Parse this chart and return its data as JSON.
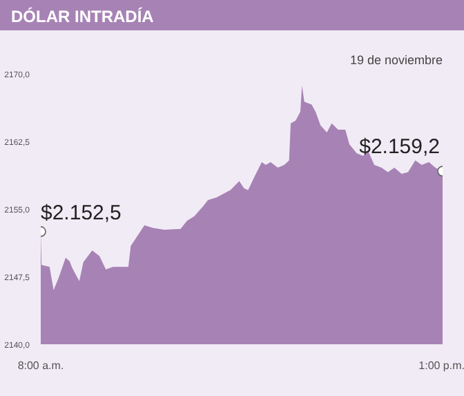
{
  "chart_data": {
    "type": "area",
    "title": "DÓLAR INTRADÍA",
    "subtitle": "19 de noviembre",
    "x": [
      8.0,
      8.01,
      8.11,
      8.16,
      8.22,
      8.31,
      8.36,
      8.39,
      8.48,
      8.53,
      8.64,
      8.73,
      8.81,
      8.9,
      9.09,
      9.12,
      9.18,
      9.29,
      9.4,
      9.54,
      9.74,
      9.82,
      9.91,
      10.02,
      10.08,
      10.19,
      10.36,
      10.47,
      10.53,
      10.58,
      10.66,
      10.75,
      10.8,
      10.86,
      10.95,
      11.03,
      11.09,
      11.11,
      11.17,
      11.23,
      11.25,
      11.28,
      11.37,
      11.42,
      11.48,
      11.56,
      11.62,
      11.7,
      11.79,
      11.84,
      11.93,
      12.01,
      12.07,
      12.15,
      12.24,
      12.32,
      12.4,
      12.49,
      12.57,
      12.66,
      12.74,
      12.83,
      12.91,
      13.0
    ],
    "series": [
      {
        "color": "#a783b5",
        "values": [
          2152.5,
          2148.8,
          2148.6,
          2146.0,
          2147.3,
          2149.6,
          2149.2,
          2148.5,
          2147.0,
          2149.1,
          2150.4,
          2149.8,
          2148.3,
          2148.6,
          2148.6,
          2150.9,
          2151.7,
          2153.2,
          2152.9,
          2152.7,
          2152.8,
          2153.7,
          2154.2,
          2155.3,
          2156.0,
          2156.3,
          2157.1,
          2158.1,
          2157.3,
          2157.1,
          2158.6,
          2160.2,
          2159.9,
          2160.2,
          2159.6,
          2159.9,
          2160.4,
          2164.5,
          2164.8,
          2165.8,
          2168.7,
          2166.9,
          2166.6,
          2165.8,
          2164.3,
          2163.5,
          2164.5,
          2163.8,
          2163.8,
          2162.2,
          2161.2,
          2160.9,
          2161.5,
          2159.9,
          2159.6,
          2159.1,
          2159.6,
          2158.9,
          2159.1,
          2160.4,
          2159.9,
          2160.2,
          2159.6,
          2159.2
        ]
      }
    ],
    "xlim": [
      8,
      13
    ],
    "xticks": [
      {
        "value": 8,
        "label": "8:00 a.m."
      },
      {
        "value": 13,
        "label": "1:00 p.m."
      }
    ],
    "ylim": [
      2140,
      2170
    ],
    "yticks": [
      {
        "value": 2140,
        "label": "2140,0"
      },
      {
        "value": 2147.5,
        "label": "2147,5"
      },
      {
        "value": 2155,
        "label": "2155,0"
      },
      {
        "value": 2162.5,
        "label": "2162,5"
      },
      {
        "value": 2170,
        "label": "2170,0"
      }
    ],
    "grid": false,
    "marker": "none",
    "annotations": [
      {
        "text": "$2.152,5",
        "x": 8,
        "y": 2152.5
      },
      {
        "text": "$2.159,2",
        "x": 13,
        "y": 2159.2
      }
    ]
  }
}
